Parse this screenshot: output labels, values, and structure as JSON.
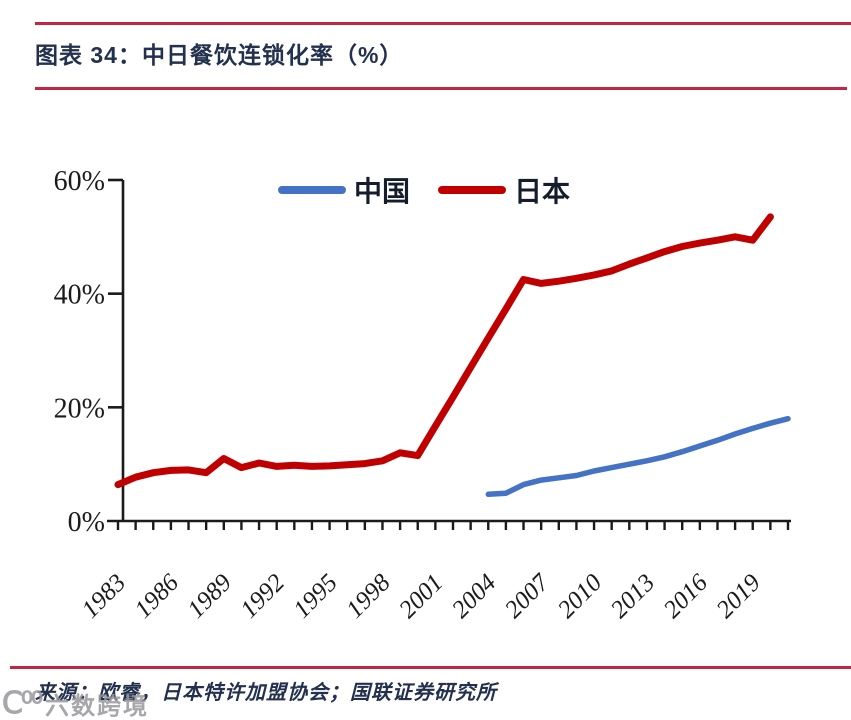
{
  "page": {
    "title": "图表 34：中日餐饮连锁化率（%）",
    "source_note": "来源：欧睿，日本特许加盟协会；国联证券研究所",
    "watermark": {
      "logo": "Ⅽ⁰⁰",
      "text": "六数跨境"
    }
  },
  "colors": {
    "rule_red": "#c22742",
    "japan_red": "#c00000",
    "china_blue": "#4472c4",
    "axis": "#1a1a1a",
    "title_text": "#23314e",
    "watermark_gray": "#97979d"
  },
  "chart_data": {
    "type": "line",
    "title": "中日餐饮连锁化率（%）",
    "xlabel": "",
    "ylabel": "",
    "ylim": [
      0,
      60
    ],
    "y_ticks": [
      {
        "value": 0,
        "label": "0%"
      },
      {
        "value": 20,
        "label": "20%"
      },
      {
        "value": 40,
        "label": "40%"
      },
      {
        "value": 60,
        "label": "60%"
      }
    ],
    "x_range": [
      1983,
      2021
    ],
    "x_tick_step": 1,
    "x_label_years": [
      "1983",
      "1986",
      "1989",
      "1992",
      "1995",
      "1998",
      "2001",
      "2004",
      "2007",
      "2010",
      "2013",
      "2016",
      "2019"
    ],
    "grid": false,
    "legend_position": "top-center",
    "series": [
      {
        "name": "中国",
        "color": "#4472c4",
        "start_year": 2004,
        "values": [
          4.7,
          4.9,
          6.4,
          7.2,
          7.6,
          8.0,
          8.8,
          9.4,
          10.0,
          10.6,
          11.3,
          12.2,
          13.2,
          14.2,
          15.3,
          16.3,
          17.2,
          18.0
        ]
      },
      {
        "name": "日本",
        "color": "#c00000",
        "start_year": 1983,
        "values": [
          6.4,
          7.7,
          8.5,
          8.9,
          9.0,
          8.5,
          11.0,
          9.4,
          10.2,
          9.6,
          9.8,
          9.6,
          9.7,
          9.9,
          10.1,
          10.6,
          12.0,
          11.5,
          16.7,
          21.8,
          27.0,
          32.2,
          37.3,
          42.5,
          41.8,
          42.2,
          42.7,
          43.3,
          44.0,
          45.2,
          46.3,
          47.4,
          48.3,
          48.9,
          49.4,
          50.0,
          49.4,
          53.5
        ]
      }
    ]
  }
}
